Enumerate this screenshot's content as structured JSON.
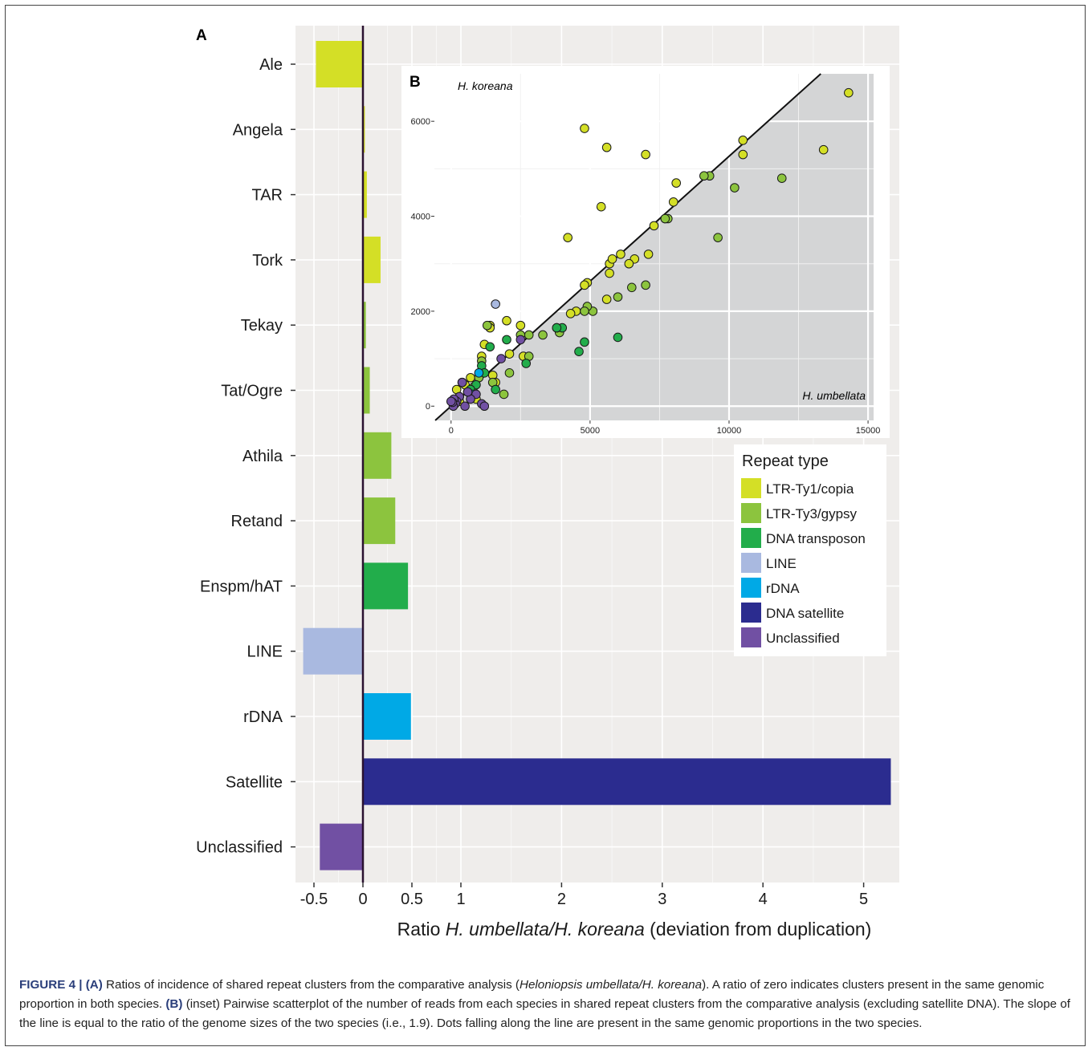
{
  "colors": {
    "panel_background": "#efedeb",
    "inset_background": "#ffffff",
    "inset_shaded_region": "#d4d5d6",
    "zero_line": "#2a1230",
    "LTR-Ty1/copia": "#d4df26",
    "LTR-Ty3/gypsy": "#8cc43e",
    "DNA transposon": "#22ad4b",
    "LINE": "#a9b9e0",
    "rDNA": "#00a9e6",
    "DNA satellite": "#2b2c8f",
    "Unclassified": "#7150a3"
  },
  "chart_data": [
    {
      "type": "bar",
      "orientation": "horizontal",
      "panel_label": "A",
      "categories": [
        "Ale",
        "Angela",
        "TAR",
        "Tork",
        "Tekay",
        "Tat/Ogre",
        "Athila",
        "Retand",
        "Enspm/hAT",
        "LINE",
        "rDNA",
        "Satellite",
        "Unclassified"
      ],
      "values": [
        -0.48,
        0.02,
        0.04,
        0.18,
        0.03,
        0.07,
        0.29,
        0.33,
        0.46,
        -0.61,
        0.49,
        5.27,
        -0.44
      ],
      "repeat_types": [
        "LTR-Ty1/copia",
        "LTR-Ty1/copia",
        "LTR-Ty1/copia",
        "LTR-Ty1/copia",
        "LTR-Ty3/gypsy",
        "LTR-Ty3/gypsy",
        "LTR-Ty3/gypsy",
        "LTR-Ty3/gypsy",
        "DNA transposon",
        "LINE",
        "rDNA",
        "DNA satellite",
        "Unclassified"
      ],
      "xlabel_prefix": "Ratio ",
      "xlabel_italic": "H. umbellata/H. koreana",
      "xlabel_suffix": " (deviation from duplication)",
      "xticks": [
        -0.5,
        0,
        0.5,
        1,
        2,
        3,
        4,
        5
      ],
      "xtick_labels": [
        "-0.5",
        "0",
        "0.5",
        "1",
        "2",
        "3",
        "4",
        "5"
      ],
      "xscale": "piecewise: -0.6 to 1 stretched, 1 to 5.3 linear",
      "xlim": [
        -0.62,
        5.35
      ],
      "grid": true,
      "reference_line": 0
    },
    {
      "type": "scatter",
      "panel_label": "B",
      "x_axis_name": "H. umbellata",
      "y_axis_name": "H. koreana",
      "xticks": [
        0,
        5000,
        10000,
        15000
      ],
      "yticks": [
        0,
        2000,
        4000,
        6000
      ],
      "xlim": [
        -600,
        15200
      ],
      "ylim": [
        -300,
        7000
      ],
      "grid": true,
      "reference_line": {
        "slope": 0.5263,
        "intercept": 0,
        "description": "ratio of genome sizes 1.9"
      },
      "series": [
        {
          "name": "LTR-Ty1/copia",
          "x": [
            14300,
            10500,
            13400,
            10500,
            5600,
            7000,
            4800,
            8100,
            5400,
            8000,
            7300,
            7700,
            6100,
            5700,
            7100,
            6600,
            5800,
            6400,
            5700,
            4900,
            4800,
            4200,
            5600,
            4500,
            4300,
            2000,
            2500,
            1400,
            1400,
            1100,
            1200,
            2100,
            2600,
            1500,
            800,
            500,
            300,
            200,
            400,
            700,
            1600,
            600,
            900,
            300
          ],
          "y": [
            6600,
            5600,
            5400,
            5300,
            5450,
            5300,
            5850,
            4700,
            4200,
            4300,
            3800,
            3950,
            3200,
            3000,
            3200,
            3100,
            3100,
            3000,
            2800,
            2600,
            2550,
            3550,
            2250,
            2000,
            1950,
            1800,
            1700,
            1700,
            1650,
            1050,
            1300,
            1100,
            1050,
            650,
            300,
            450,
            200,
            350,
            500,
            600,
            500,
            300,
            150,
            100
          ]
        },
        {
          "name": "LTR-Ty3/gypsy",
          "x": [
            11900,
            10200,
            9600,
            9300,
            9100,
            7800,
            7700,
            7000,
            6500,
            6000,
            5100,
            4900,
            4800,
            3900,
            3800,
            3300,
            2800,
            2800,
            2500,
            2100,
            1900,
            1300,
            1500,
            1100,
            1000,
            800
          ],
          "y": [
            4800,
            4600,
            3550,
            4850,
            4850,
            3950,
            3950,
            2550,
            2500,
            2300,
            2000,
            2100,
            2000,
            1550,
            1650,
            1500,
            1050,
            1500,
            1500,
            700,
            250,
            1700,
            500,
            950,
            600,
            400
          ]
        },
        {
          "name": "DNA transposon",
          "x": [
            6000,
            4800,
            4600,
            4000,
            3800,
            2700,
            2000,
            1600,
            1400,
            1100,
            1200,
            900,
            700
          ],
          "y": [
            1450,
            1350,
            1150,
            1650,
            1650,
            900,
            1400,
            350,
            1250,
            850,
            700,
            450,
            350
          ]
        },
        {
          "name": "LINE",
          "x": [
            1600
          ],
          "y": [
            2150
          ]
        },
        {
          "name": "rDNA",
          "x": [
            1000,
            800
          ],
          "y": [
            700,
            250
          ]
        },
        {
          "name": "Unclassified",
          "x": [
            2500,
            1800,
            1100,
            900,
            700,
            600,
            500,
            400,
            300,
            200,
            150,
            100,
            80,
            50,
            0,
            1200
          ],
          "y": [
            1400,
            1000,
            50,
            250,
            150,
            300,
            0,
            500,
            200,
            100,
            50,
            150,
            0,
            80,
            100,
            0
          ]
        }
      ]
    }
  ],
  "legend": {
    "title": "Repeat type",
    "position": "right, below inset",
    "items": [
      "LTR-Ty1/copia",
      "LTR-Ty3/gypsy",
      "DNA transposon",
      "LINE",
      "rDNA",
      "DNA satellite",
      "Unclassified"
    ]
  },
  "caption": {
    "fig_label": "FIGURE 4 | ",
    "part_a_label": "(A)",
    "part_a_text_1": " Ratios of incidence of shared repeat clusters from the comparative analysis (",
    "part_a_italic": "Heloniopsis umbellata/H. koreana",
    "part_a_text_2": "). A ratio of zero indicates clusters present in the same genomic proportion in both species. ",
    "part_b_label": "(B)",
    "part_b_text": " (inset) Pairwise scatterplot of the number of reads from each species in shared repeat clusters from the comparative analysis (excluding satellite DNA). The slope of the line is equal to the ratio of the genome sizes of the two species (i.e., 1.9). Dots falling along the line are present in the same genomic proportions in the two species."
  }
}
